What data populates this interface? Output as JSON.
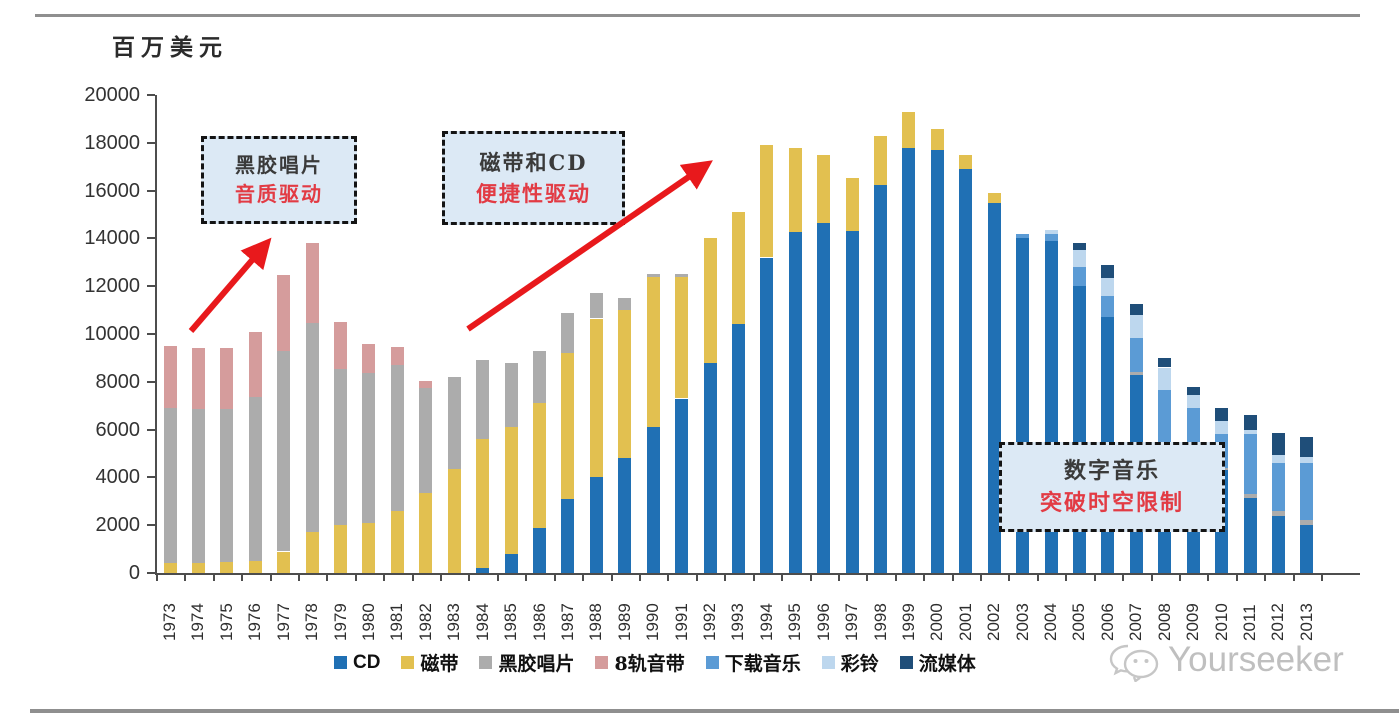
{
  "unit_label": "百万美元",
  "annotations": [
    {
      "title": "黑胶唱片",
      "subtitle": "音质驱动"
    },
    {
      "title": "磁带和CD",
      "subtitle": "便捷性驱动"
    },
    {
      "title": "数字音乐",
      "subtitle": "突破时空限制"
    }
  ],
  "watermark": {
    "text": "Yourseeker",
    "icon": "wechat-icon"
  },
  "colors": {
    "arrow": "#e8191c",
    "callout_fill": "#dce9f5",
    "callout_border": "#141414",
    "callout_subtitle": "#e23b44",
    "axis": "#4d4d4d",
    "rule_line": "#8f8f8f",
    "watermark": "#bfbfbf"
  },
  "chart_data": {
    "type": "bar",
    "stacked": true,
    "grid": false,
    "legend_position": "bottom",
    "title": "",
    "xlabel": "",
    "ylabel": "百万美元",
    "ylim": [
      0,
      20000
    ],
    "ytick_step": 2000,
    "categories": [
      1973,
      1974,
      1975,
      1976,
      1977,
      1978,
      1979,
      1980,
      1981,
      1982,
      1983,
      1984,
      1985,
      1986,
      1987,
      1988,
      1989,
      1990,
      1991,
      1992,
      1993,
      1994,
      1995,
      1996,
      1997,
      1998,
      1999,
      2000,
      2001,
      2002,
      2003,
      2004,
      2005,
      2006,
      2007,
      2008,
      2009,
      2010,
      2011,
      2012,
      2013
    ],
    "series": [
      {
        "name": "CD",
        "color": "#2070b4",
        "values": [
          0,
          0,
          0,
          0,
          0,
          0,
          0,
          0,
          0,
          0,
          0,
          200,
          800,
          1900,
          3100,
          4000,
          4800,
          6100,
          7300,
          8800,
          10400,
          13200,
          14250,
          14650,
          14300,
          16250,
          17800,
          17700,
          16900,
          15500,
          14000,
          13900,
          12000,
          10700,
          8300,
          5400,
          5400,
          4300,
          3150,
          2400,
          2000
        ]
      },
      {
        "name": "磁带",
        "color": "#e2c050",
        "values": [
          400,
          400,
          450,
          500,
          900,
          1700,
          2000,
          2100,
          2600,
          3350,
          4350,
          5400,
          5300,
          5200,
          6100,
          6650,
          6200,
          6300,
          5100,
          5200,
          4700,
          4700,
          3550,
          2850,
          2250,
          2050,
          1500,
          900,
          600,
          400,
          0,
          0,
          0,
          0,
          0,
          0,
          0,
          0,
          0,
          0,
          0
        ]
      },
      {
        "name": "黑胶唱片",
        "color": "#acacac",
        "values": [
          6500,
          6450,
          6400,
          6850,
          8400,
          8750,
          6550,
          6250,
          6100,
          4400,
          3850,
          3300,
          2700,
          2200,
          1700,
          1050,
          500,
          100,
          100,
          0,
          0,
          0,
          0,
          0,
          0,
          0,
          0,
          0,
          0,
          0,
          0,
          0,
          0,
          0,
          100,
          100,
          100,
          100,
          150,
          200,
          200
        ]
      },
      {
        "name": "8轨音带",
        "color": "#d59c9c",
        "values": [
          2600,
          2550,
          2550,
          2750,
          3150,
          3350,
          1950,
          1250,
          750,
          300,
          0,
          0,
          0,
          0,
          0,
          0,
          0,
          0,
          0,
          0,
          0,
          0,
          0,
          0,
          0,
          0,
          0,
          0,
          0,
          0,
          0,
          0,
          0,
          0,
          0,
          0,
          0,
          0,
          0,
          0,
          0
        ]
      },
      {
        "name": "下载音乐",
        "color": "#5b9bd5",
        "values": [
          0,
          0,
          0,
          0,
          0,
          0,
          0,
          0,
          0,
          0,
          0,
          0,
          0,
          0,
          0,
          0,
          0,
          0,
          0,
          0,
          0,
          0,
          0,
          0,
          0,
          0,
          0,
          0,
          0,
          0,
          200,
          300,
          800,
          900,
          1450,
          2150,
          1400,
          1400,
          2500,
          2000,
          2400
        ]
      },
      {
        "name": "彩铃",
        "color": "#bdd7ee",
        "values": [
          0,
          0,
          0,
          0,
          0,
          0,
          0,
          0,
          0,
          0,
          0,
          0,
          0,
          0,
          0,
          0,
          0,
          0,
          0,
          0,
          0,
          0,
          0,
          0,
          0,
          0,
          0,
          0,
          0,
          0,
          0,
          150,
          700,
          750,
          950,
          950,
          550,
          550,
          200,
          350,
          250
        ]
      },
      {
        "name": "流媒体",
        "color": "#1f4e79",
        "values": [
          0,
          0,
          0,
          0,
          0,
          0,
          0,
          0,
          0,
          0,
          0,
          0,
          0,
          0,
          0,
          0,
          0,
          0,
          0,
          0,
          0,
          0,
          0,
          0,
          0,
          0,
          0,
          0,
          0,
          0,
          0,
          0,
          300,
          550,
          450,
          400,
          350,
          550,
          600,
          900,
          850
        ]
      }
    ]
  }
}
